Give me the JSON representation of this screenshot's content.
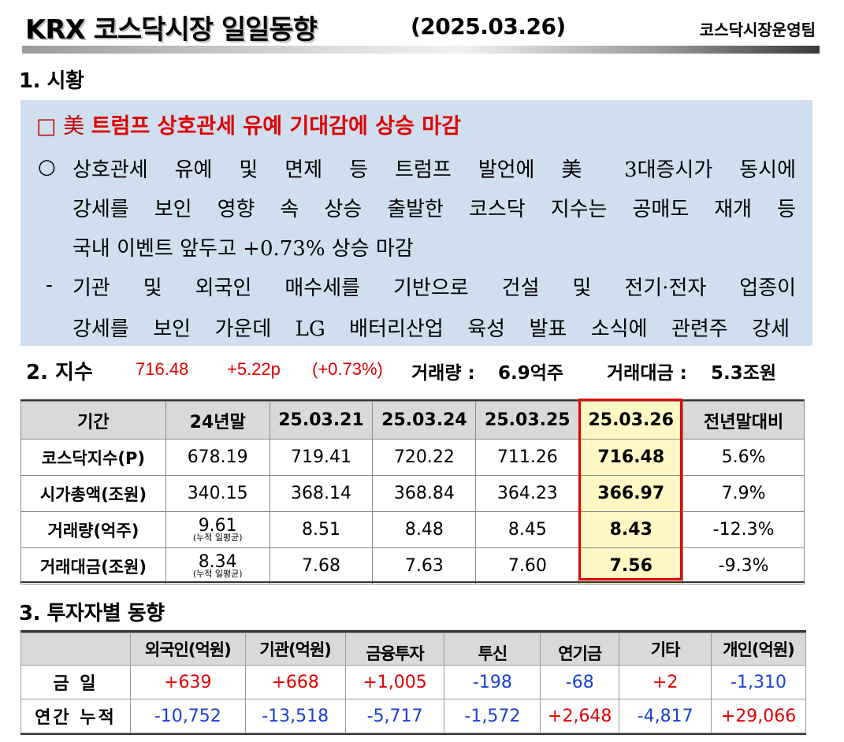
{
  "header": {
    "title": "KRX 코스닥시장 일일동향",
    "date": "(2025.03.26)",
    "team": "코스닥시장운영팀"
  },
  "section1": {
    "title": "1. 시황",
    "headline_box": "□ 美",
    "headline": "트럼프 상호관세 유예 기대감에 상승 마감",
    "bullet1_mark": "○",
    "bullet1_lines": [
      "상호관세 유예 및 면제 등 트럼프 발언에 美 3대증시가 동시에",
      "강세를 보인 영향 속 상승 출발한 코스닥 지수는 공매도 재개 등",
      "국내 이벤트 앞두고 +0.73% 상승 마감"
    ],
    "bullet2_mark": "-",
    "bullet2_lines": [
      "기관 및 외국인 매수세를 기반으로 건설 및 전기·전자 업종이",
      "강세를 보인 가운데 LG 배터리산업 육성 발표 소식에 관련주 강세"
    ]
  },
  "section2": {
    "title": "2. 지수",
    "index_value": "716.48",
    "change_point": "+5.22p",
    "change_pct": "(+0.73%)",
    "volume_label": "거래량 :",
    "volume_value": "6.9억주",
    "value_label": "거래대금 :",
    "value_value": "5.3조원",
    "table": {
      "headers": [
        "기간",
        "24년말",
        "25.03.21",
        "25.03.24",
        "25.03.25",
        "25.03.26",
        "전년말대비"
      ],
      "rows": [
        {
          "label": "코스닥지수(P)",
          "y24": "678.19",
          "sub": "",
          "d1": "719.41",
          "d2": "720.22",
          "d3": "711.26",
          "d4": "716.48",
          "chg": "5.6%"
        },
        {
          "label": "시가총액(조원)",
          "y24": "340.15",
          "sub": "",
          "d1": "368.14",
          "d2": "368.84",
          "d3": "364.23",
          "d4": "366.97",
          "chg": "7.9%"
        },
        {
          "label": "거래량(억주)",
          "y24": "9.61",
          "sub": "(누적 일평균)",
          "d1": "8.51",
          "d2": "8.48",
          "d3": "8.45",
          "d4": "8.43",
          "chg": "-12.3%"
        },
        {
          "label": "거래대금(조원)",
          "y24": "8.34",
          "sub": "(누적 일평균)",
          "d1": "7.68",
          "d2": "7.63",
          "d3": "7.60",
          "d4": "7.56",
          "chg": "-9.3%"
        }
      ]
    }
  },
  "section3": {
    "title": "3. 투자자별 동향",
    "headers": [
      "외국인(억원)",
      "기관(억원)",
      "금융투자",
      "투신",
      "연기금",
      "기타",
      "개인(억원)"
    ],
    "rows": [
      {
        "label": "금  일",
        "values": [
          "+639",
          "+668",
          "+1,005",
          "-198",
          "-68",
          "+2",
          "-1,310"
        ]
      },
      {
        "label": "연간 누적",
        "values": [
          "-10,752",
          "-13,518",
          "-5,717",
          "-1,572",
          "+2,648",
          "-4,817",
          "+29,066"
        ]
      }
    ]
  },
  "colors": {
    "highlight_fill": "#fff8c4",
    "highlight_border": "#e60000",
    "positive": "#e00000",
    "negative": "#1a3fd4",
    "market_box": "#cfdfef"
  }
}
